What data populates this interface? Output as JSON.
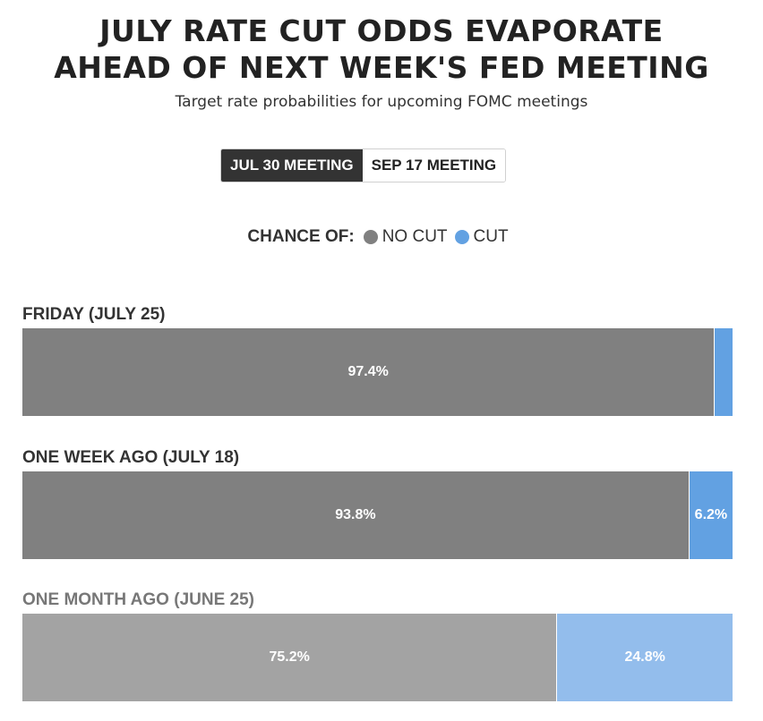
{
  "header": {
    "title_line1": "JULY RATE CUT ODDS EVAPORATE",
    "title_line2": "AHEAD OF NEXT WEEK'S FED MEETING",
    "subtitle": "Target rate probabilities for upcoming FOMC meetings"
  },
  "tabs": [
    {
      "label": "JUL 30 MEETING",
      "active": true
    },
    {
      "label": "SEP 17 MEETING",
      "active": false
    }
  ],
  "legend": {
    "title": "CHANCE OF:",
    "items": [
      {
        "label": "NO CUT",
        "color": "#808080"
      },
      {
        "label": "CUT",
        "color": "#62a1e2"
      }
    ]
  },
  "chart_data": {
    "type": "bar",
    "orientation": "horizontal-stacked-100",
    "categories": [
      "FRIDAY (JULY 25)",
      "ONE WEEK AGO (JULY 18)",
      "ONE MONTH AGO (JUNE 25)"
    ],
    "series": [
      {
        "name": "NO CUT",
        "values": [
          97.4,
          93.8,
          75.2
        ],
        "labels": [
          "97.4%",
          "93.8%",
          "75.2%"
        ]
      },
      {
        "name": "CUT",
        "values": [
          2.6,
          6.2,
          24.8
        ],
        "labels": [
          "",
          "6.2%",
          "24.8%"
        ]
      }
    ],
    "colors": {
      "no_cut": [
        "#808080",
        "#808080",
        "#a3a3a3"
      ],
      "cut": [
        "#62a1e2",
        "#62a1e2",
        "#93bdec"
      ],
      "label": [
        "#333333",
        "#333333",
        "#777777"
      ]
    }
  }
}
